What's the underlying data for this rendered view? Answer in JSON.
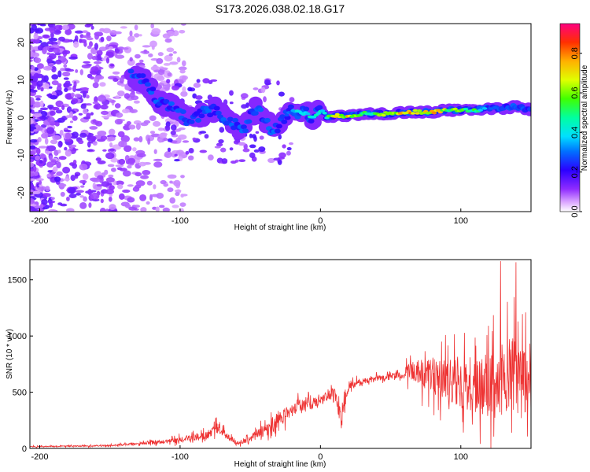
{
  "title": "S173.2026.038.02.18.G17",
  "chart_data": [
    {
      "type": "heatmap",
      "xlabel": "Height of straight line (km)",
      "ylabel": "Frequency (Hz)",
      "xlim": [
        -207,
        150
      ],
      "ylim": [
        -25,
        25
      ],
      "xticks": [
        -200,
        -100,
        0,
        100
      ],
      "yticks": [
        -20,
        -10,
        0,
        10,
        20
      ],
      "colorbar": {
        "label": "Normalized spectral amplitude",
        "range": [
          0,
          0.95
        ],
        "ticks": [
          "0.0",
          "0.2",
          "0.4",
          "0.6",
          "0.8"
        ],
        "tick_values": [
          0,
          0.2,
          0.4,
          0.6,
          0.8
        ]
      },
      "ridge": [
        {
          "x": -135,
          "f": 11,
          "a": 0.25
        },
        {
          "x": -125,
          "f": 10,
          "a": 0.2
        },
        {
          "x": -115,
          "f": 4,
          "a": 0.2
        },
        {
          "x": -105,
          "f": 3,
          "a": 0.2
        },
        {
          "x": -95,
          "f": -1,
          "a": 0.25
        },
        {
          "x": -85,
          "f": 1,
          "a": 0.2
        },
        {
          "x": -75,
          "f": 2,
          "a": 0.2
        },
        {
          "x": -65,
          "f": -1,
          "a": 0.2
        },
        {
          "x": -55,
          "f": -3,
          "a": 0.2
        },
        {
          "x": -45,
          "f": 3,
          "a": 0.2
        },
        {
          "x": -35,
          "f": -3,
          "a": 0.2
        },
        {
          "x": -30,
          "f": -2,
          "a": 0.25
        },
        {
          "x": -20,
          "f": 2,
          "a": 0.4
        },
        {
          "x": -10,
          "f": 1,
          "a": 0.45
        },
        {
          "x": -5,
          "f": 0,
          "a": 0.5
        },
        {
          "x": 0,
          "f": 2,
          "a": 0.45
        },
        {
          "x": 5,
          "f": 0,
          "a": 0.6
        },
        {
          "x": 10,
          "f": 0.5,
          "a": 0.7
        },
        {
          "x": 20,
          "f": 0.5,
          "a": 0.75
        },
        {
          "x": 30,
          "f": 1,
          "a": 0.55
        },
        {
          "x": 40,
          "f": 1,
          "a": 0.6
        },
        {
          "x": 50,
          "f": 1,
          "a": 0.65
        },
        {
          "x": 60,
          "f": 1.5,
          "a": 0.85
        },
        {
          "x": 70,
          "f": 1.5,
          "a": 0.8
        },
        {
          "x": 80,
          "f": 1.5,
          "a": 0.8
        },
        {
          "x": 90,
          "f": 2,
          "a": 0.65
        },
        {
          "x": 100,
          "f": 2,
          "a": 0.6
        },
        {
          "x": 110,
          "f": 2,
          "a": 0.55
        },
        {
          "x": 120,
          "f": 2.5,
          "a": 0.3
        },
        {
          "x": 130,
          "f": 2.5,
          "a": 0.25
        },
        {
          "x": 140,
          "f": 3,
          "a": 0.2
        },
        {
          "x": 150,
          "f": 2,
          "a": 0.15
        }
      ]
    },
    {
      "type": "line",
      "xlabel": "Height of straight line (km)",
      "ylabel": "SNR (10 * v/v)",
      "xlim": [
        -207,
        150
      ],
      "ylim": [
        0,
        1680
      ],
      "xticks": [
        -200,
        -100,
        0,
        100
      ],
      "yticks": [
        0,
        500,
        1000,
        1500
      ],
      "color": "#ee3333",
      "envelope": [
        {
          "x": -207,
          "base": 15,
          "spread": 10
        },
        {
          "x": -150,
          "base": 25,
          "spread": 15
        },
        {
          "x": -110,
          "base": 60,
          "spread": 40
        },
        {
          "x": -80,
          "base": 120,
          "spread": 90
        },
        {
          "x": -75,
          "base": 200,
          "spread": 120
        },
        {
          "x": -60,
          "base": 40,
          "spread": 30
        },
        {
          "x": -50,
          "base": 80,
          "spread": 60
        },
        {
          "x": -40,
          "base": 160,
          "spread": 130
        },
        {
          "x": -30,
          "base": 250,
          "spread": 170
        },
        {
          "x": -15,
          "base": 380,
          "spread": 120
        },
        {
          "x": 0,
          "base": 420,
          "spread": 120
        },
        {
          "x": 10,
          "base": 500,
          "spread": 120
        },
        {
          "x": 15,
          "base": 250,
          "spread": 180
        },
        {
          "x": 20,
          "base": 560,
          "spread": 80
        },
        {
          "x": 40,
          "base": 620,
          "spread": 60
        },
        {
          "x": 60,
          "base": 650,
          "spread": 60
        },
        {
          "x": 62,
          "base": 700,
          "spread": 200
        },
        {
          "x": 90,
          "base": 600,
          "spread": 450
        },
        {
          "x": 120,
          "base": 550,
          "spread": 600
        },
        {
          "x": 135,
          "base": 650,
          "spread": 800
        },
        {
          "x": 150,
          "base": 550,
          "spread": 600
        }
      ]
    }
  ]
}
